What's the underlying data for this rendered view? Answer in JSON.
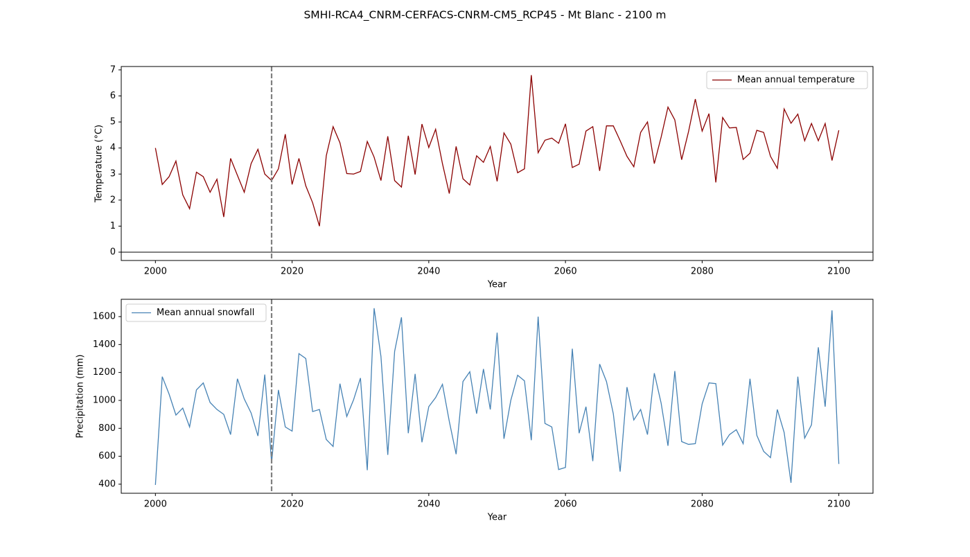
{
  "title": "SMHI-RCA4_CNRM-CERFACS-CNRM-CM5_RCP45 - Mt Blanc - 2100 m",
  "chart_data": [
    {
      "type": "line",
      "xlabel": "Year",
      "ylabel": "Temperature (°C)",
      "x": [
        2000,
        2001,
        2002,
        2003,
        2004,
        2005,
        2006,
        2007,
        2008,
        2009,
        2010,
        2011,
        2012,
        2013,
        2014,
        2015,
        2016,
        2017,
        2018,
        2019,
        2020,
        2021,
        2022,
        2023,
        2024,
        2025,
        2026,
        2027,
        2028,
        2029,
        2030,
        2031,
        2032,
        2033,
        2034,
        2035,
        2036,
        2037,
        2038,
        2039,
        2040,
        2041,
        2042,
        2043,
        2044,
        2045,
        2046,
        2047,
        2048,
        2049,
        2050,
        2051,
        2052,
        2053,
        2054,
        2055,
        2056,
        2057,
        2058,
        2059,
        2060,
        2061,
        2062,
        2063,
        2064,
        2065,
        2066,
        2067,
        2068,
        2069,
        2070,
        2071,
        2072,
        2073,
        2074,
        2075,
        2076,
        2077,
        2078,
        2079,
        2080,
        2081,
        2082,
        2083,
        2084,
        2085,
        2086,
        2087,
        2088,
        2089,
        2090,
        2091,
        2092,
        2093,
        2094,
        2095,
        2096,
        2097,
        2098,
        2099,
        2100
      ],
      "series": [
        {
          "name": "Mean annual temperature",
          "color": "#8b0000",
          "values": [
            4.0,
            2.6,
            2.9,
            3.5,
            2.2,
            1.67,
            3.07,
            2.9,
            2.3,
            2.8,
            1.35,
            3.6,
            2.95,
            2.3,
            3.4,
            3.95,
            3.0,
            2.75,
            3.2,
            4.53,
            2.6,
            3.6,
            2.55,
            1.9,
            1.0,
            3.7,
            4.82,
            4.2,
            3.02,
            3.0,
            3.1,
            4.25,
            3.65,
            2.75,
            4.45,
            2.75,
            2.5,
            4.47,
            2.98,
            4.92,
            4.02,
            4.72,
            3.4,
            2.25,
            4.06,
            2.82,
            2.58,
            3.7,
            3.45,
            4.06,
            2.72,
            4.58,
            4.15,
            3.05,
            3.2,
            6.8,
            3.82,
            4.3,
            4.38,
            4.18,
            4.93,
            3.25,
            3.38,
            4.65,
            4.82,
            3.12,
            4.85,
            4.85,
            4.28,
            3.68,
            3.28,
            4.6,
            5.0,
            3.4,
            4.42,
            5.57,
            5.08,
            3.55,
            4.62,
            5.88,
            4.65,
            5.32,
            2.68,
            5.17,
            4.77,
            4.79,
            3.56,
            3.8,
            4.68,
            4.6,
            3.68,
            3.22,
            5.5,
            4.95,
            5.3,
            4.28,
            4.94,
            4.28,
            4.94,
            3.52,
            4.68
          ]
        }
      ],
      "xlim": [
        1995,
        2105
      ],
      "ylim": [
        -0.32,
        7.13
      ],
      "xticks": [
        2000,
        2020,
        2040,
        2060,
        2080,
        2100
      ],
      "yticks": [
        0,
        1,
        2,
        3,
        4,
        5,
        6,
        7
      ],
      "vline_x": 2017,
      "hline_y": 0,
      "legend": "upper right"
    },
    {
      "type": "line",
      "xlabel": "Year",
      "ylabel": "Precipitation (mm)",
      "x": [
        2000,
        2001,
        2002,
        2003,
        2004,
        2005,
        2006,
        2007,
        2008,
        2009,
        2010,
        2011,
        2012,
        2013,
        2014,
        2015,
        2016,
        2017,
        2018,
        2019,
        2020,
        2021,
        2022,
        2023,
        2024,
        2025,
        2026,
        2027,
        2028,
        2029,
        2030,
        2031,
        2032,
        2033,
        2034,
        2035,
        2036,
        2037,
        2038,
        2039,
        2040,
        2041,
        2042,
        2043,
        2044,
        2045,
        2046,
        2047,
        2048,
        2049,
        2050,
        2051,
        2052,
        2053,
        2054,
        2055,
        2056,
        2057,
        2058,
        2059,
        2060,
        2061,
        2062,
        2063,
        2064,
        2065,
        2066,
        2067,
        2068,
        2069,
        2070,
        2071,
        2072,
        2073,
        2074,
        2075,
        2076,
        2077,
        2078,
        2079,
        2080,
        2081,
        2082,
        2083,
        2084,
        2085,
        2086,
        2087,
        2088,
        2089,
        2090,
        2091,
        2092,
        2093,
        2094,
        2095,
        2096,
        2097,
        2098,
        2099,
        2100
      ],
      "series": [
        {
          "name": "Mean annual snowfall",
          "color": "#4682b4",
          "values": [
            395,
            1170,
            1045,
            895,
            945,
            810,
            1075,
            1125,
            985,
            935,
            900,
            755,
            1155,
            1010,
            910,
            745,
            1185,
            555,
            1075,
            810,
            780,
            1335,
            1300,
            920,
            935,
            720,
            670,
            1120,
            885,
            1005,
            1160,
            500,
            1660,
            1315,
            610,
            1350,
            1595,
            765,
            1190,
            700,
            955,
            1020,
            1115,
            850,
            615,
            1135,
            1205,
            905,
            1225,
            935,
            1485,
            725,
            1000,
            1180,
            1140,
            715,
            1600,
            835,
            810,
            505,
            520,
            1370,
            765,
            955,
            565,
            1260,
            1135,
            905,
            490,
            1095,
            860,
            935,
            755,
            1195,
            980,
            675,
            1210,
            705,
            685,
            690,
            975,
            1125,
            1120,
            680,
            755,
            790,
            690,
            1155,
            750,
            635,
            590,
            935,
            770,
            410,
            1170,
            730,
            825,
            1380,
            955,
            1645,
            545
          ]
        }
      ],
      "xlim": [
        1995,
        2105
      ],
      "ylim": [
        335,
        1724
      ],
      "xticks": [
        2000,
        2020,
        2040,
        2060,
        2080,
        2100
      ],
      "yticks": [
        400,
        600,
        800,
        1000,
        1200,
        1400,
        1600
      ],
      "vline_x": 2017,
      "legend": "upper left"
    }
  ]
}
